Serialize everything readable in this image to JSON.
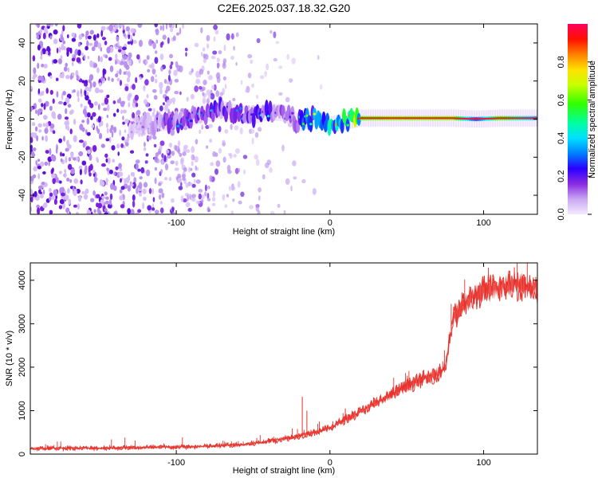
{
  "title": "C2E6.2025.037.18.32.G20",
  "chart_data": [
    {
      "type": "heatmap",
      "xlabel": "Height of straight line (km)",
      "ylabel": "Frequency (Hz)",
      "xlim": [
        -195,
        135
      ],
      "ylim": [
        -50,
        50
      ],
      "xticks": [
        -100,
        0,
        100
      ],
      "yticks": [
        -40,
        -20,
        0,
        20,
        40
      ],
      "colorbar": {
        "label": "Normalized spectral amplitude",
        "range": [
          0,
          1
        ],
        "ticks": [
          "0.0",
          "0.2",
          "0.4",
          "0.6",
          "0.8"
        ]
      },
      "ridge": [
        {
          "x": -130,
          "y": -4,
          "amp": 0.05
        },
        {
          "x": -120,
          "y": -3,
          "amp": 0.1
        },
        {
          "x": -110,
          "y": -2,
          "amp": 0.15
        },
        {
          "x": -100,
          "y": -1,
          "amp": 0.2
        },
        {
          "x": -90,
          "y": 1,
          "amp": 0.2
        },
        {
          "x": -80,
          "y": 3,
          "amp": 0.25
        },
        {
          "x": -70,
          "y": 5,
          "amp": 0.25
        },
        {
          "x": -60,
          "y": 3,
          "amp": 0.2
        },
        {
          "x": -50,
          "y": 2,
          "amp": 0.25
        },
        {
          "x": -40,
          "y": 4,
          "amp": 0.25
        },
        {
          "x": -30,
          "y": 3,
          "amp": 0.15
        },
        {
          "x": -20,
          "y": -2,
          "amp": 0.3
        },
        {
          "x": -10,
          "y": 1,
          "amp": 0.4
        },
        {
          "x": 0,
          "y": -3,
          "amp": 0.5
        },
        {
          "x": 10,
          "y": -1,
          "amp": 0.6
        },
        {
          "x": 20,
          "y": 0.5,
          "amp": 0.85
        },
        {
          "x": 40,
          "y": 0.5,
          "amp": 0.9
        },
        {
          "x": 60,
          "y": 0.5,
          "amp": 0.9
        },
        {
          "x": 80,
          "y": 0.5,
          "amp": 0.9
        },
        {
          "x": 95,
          "y": 0,
          "amp": 0.4
        },
        {
          "x": 110,
          "y": 0.5,
          "amp": 0.85
        },
        {
          "x": 135,
          "y": 0.5,
          "amp": 0.5
        }
      ]
    },
    {
      "type": "line",
      "xlabel": "Height of straight line (km)",
      "ylabel": "SNR (10 * v/v)",
      "xlim": [
        -195,
        135
      ],
      "ylim": [
        0,
        4400
      ],
      "xticks": [
        -100,
        0,
        100
      ],
      "yticks": [
        0,
        1000,
        2000,
        3000,
        4000
      ],
      "color": "#e8312b",
      "series": [
        {
          "x": [
            -195,
            -150,
            -100,
            -80,
            -60,
            -50,
            -40,
            -30,
            -20,
            -10,
            0,
            10,
            20,
            30,
            40,
            50,
            60,
            70,
            75,
            78,
            80,
            85,
            90,
            95,
            100,
            110,
            120,
            135
          ],
          "y": [
            130,
            140,
            160,
            180,
            210,
            240,
            300,
            350,
            420,
            500,
            600,
            800,
            980,
            1180,
            1380,
            1560,
            1720,
            1850,
            2000,
            2700,
            3100,
            3350,
            3550,
            3650,
            3750,
            3850,
            3900,
            3850
          ]
        }
      ]
    }
  ]
}
